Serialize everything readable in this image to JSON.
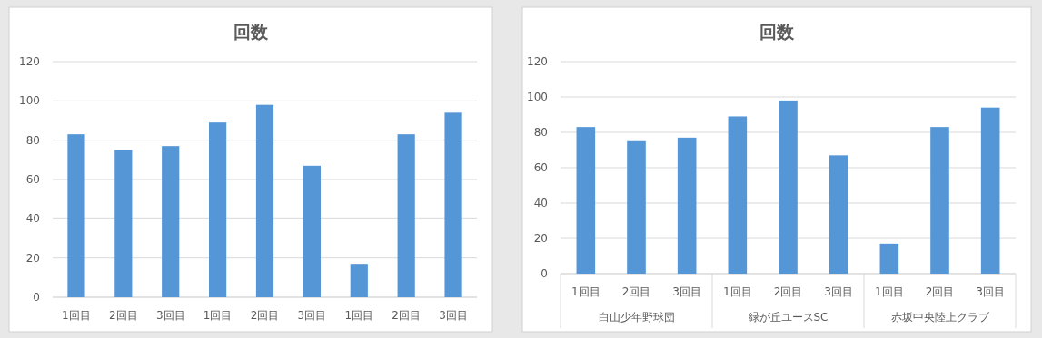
{
  "chart_data": [
    {
      "type": "bar",
      "title": "回数",
      "categories": [
        "1回目",
        "2回目",
        "3回目",
        "1回目",
        "2回目",
        "3回目",
        "1回目",
        "2回目",
        "3回目"
      ],
      "values": [
        83,
        75,
        77,
        89,
        98,
        67,
        17,
        83,
        94
      ],
      "color": "#5596d6",
      "ylim": [
        0,
        120
      ],
      "yticks": [
        0,
        20,
        40,
        60,
        80,
        100,
        120
      ],
      "grid": "y"
    },
    {
      "type": "bar",
      "title": "回数",
      "categories": [
        "1回目",
        "2回目",
        "3回目",
        "1回目",
        "2回目",
        "3回目",
        "1回目",
        "2回目",
        "3回目"
      ],
      "values": [
        83,
        75,
        77,
        89,
        98,
        67,
        17,
        83,
        94
      ],
      "color": "#5596d6",
      "ylim": [
        0,
        120
      ],
      "yticks": [
        0,
        20,
        40,
        60,
        80,
        100,
        120
      ],
      "grid": "y",
      "annotations": [
        "白山少年野球団",
        "緑が丘ユースSC",
        "赤坂中央陸上クラブ"
      ]
    }
  ]
}
